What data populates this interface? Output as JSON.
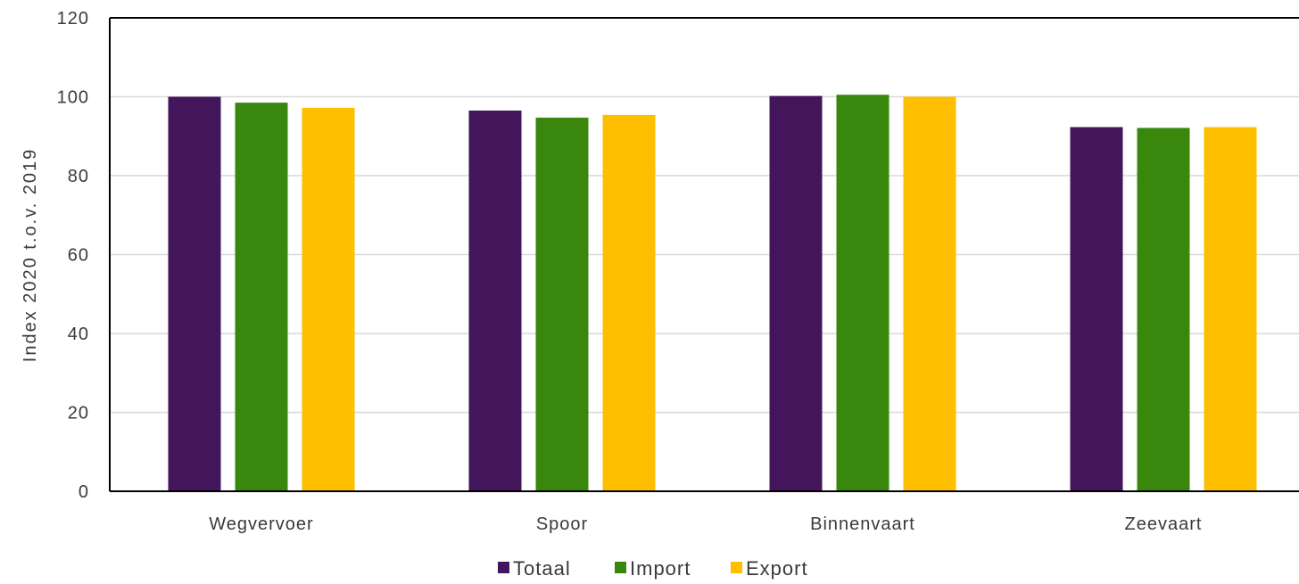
{
  "chart_data": {
    "type": "bar",
    "title": "",
    "xlabel": "",
    "ylabel": "Index 2020 t.o.v. 2019",
    "ylim": [
      0,
      120
    ],
    "yticks": [
      0,
      20,
      40,
      60,
      80,
      100,
      120
    ],
    "grid": true,
    "legend_position": "bottom",
    "categories": [
      "Wegvervoer",
      "Spoor",
      "Binnenvaart",
      "Zeevaart"
    ],
    "series": [
      {
        "name": "Totaal",
        "color": "#43165b",
        "values": [
          100,
          96.5,
          100.2,
          92.3
        ]
      },
      {
        "name": "Import",
        "color": "#3a870e",
        "values": [
          98.5,
          94.7,
          100.5,
          92.1
        ]
      },
      {
        "name": "Export",
        "color": "#fdbf00",
        "values": [
          97.2,
          95.4,
          100.0,
          92.3
        ]
      }
    ]
  }
}
